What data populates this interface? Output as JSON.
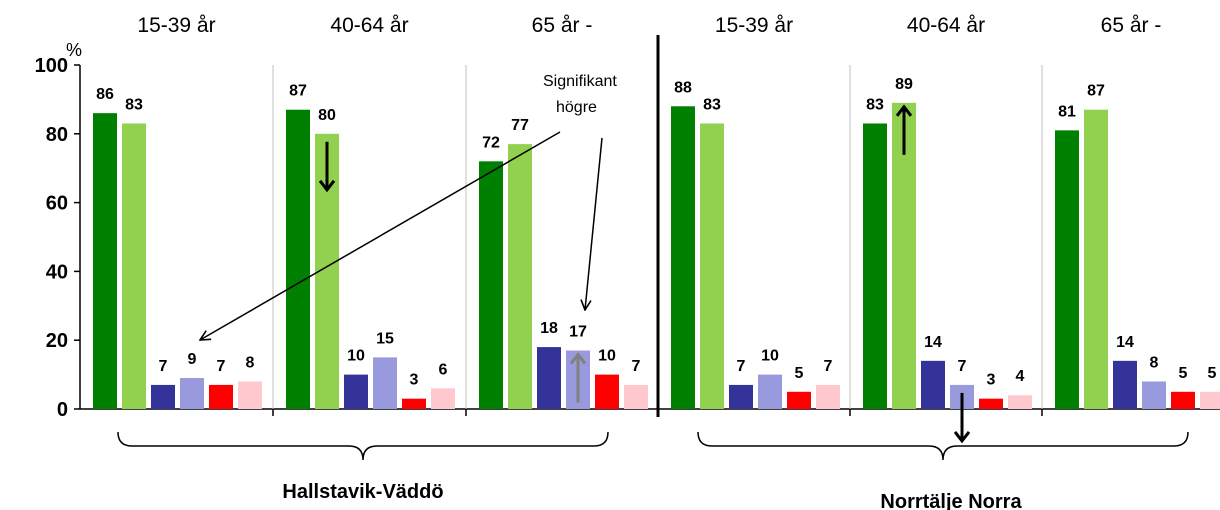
{
  "chart_data": {
    "type": "bar",
    "ylabel": "%",
    "ylim": [
      0,
      100
    ],
    "yticks": [
      "0",
      "20",
      "40",
      "60",
      "80",
      "100"
    ],
    "ytick_values": [
      0,
      20,
      40,
      60,
      80,
      100
    ],
    "regions": [
      {
        "name": "Hallstavik-Väddö",
        "groups": [
          {
            "label": "15-39 år",
            "values": [
              86,
              83,
              7,
              9,
              7,
              8
            ]
          },
          {
            "label": "40-64 år",
            "values": [
              87,
              80,
              10,
              15,
              3,
              6
            ]
          },
          {
            "label": "65 år -",
            "values": [
              72,
              77,
              18,
              17,
              10,
              7
            ]
          }
        ]
      },
      {
        "name": "Norrtälje Norra",
        "groups": [
          {
            "label": "15-39 år",
            "values": [
              88,
              83,
              7,
              10,
              5,
              7
            ]
          },
          {
            "label": "40-64 år",
            "values": [
              83,
              89,
              14,
              7,
              3,
              4
            ]
          },
          {
            "label": "65 år -",
            "values": [
              81,
              87,
              14,
              8,
              5,
              5
            ]
          }
        ]
      }
    ],
    "colors": [
      "#008000",
      "#92d050",
      "#333399",
      "#9999dd",
      "#ff0000",
      "#ffc7ce"
    ],
    "annotation": "Signifikant\nhögre",
    "significance_markers": [
      {
        "region": 0,
        "group": 1,
        "bar": 1,
        "direction": "down",
        "color": "#000000"
      },
      {
        "region": 0,
        "group": 2,
        "bar": 3,
        "direction": "up",
        "color": "#808080"
      },
      {
        "region": 1,
        "group": 1,
        "bar": 1,
        "direction": "up",
        "color": "#000000"
      },
      {
        "region": 1,
        "group": 1,
        "bar": 3,
        "direction": "down",
        "color": "#000000"
      }
    ]
  }
}
